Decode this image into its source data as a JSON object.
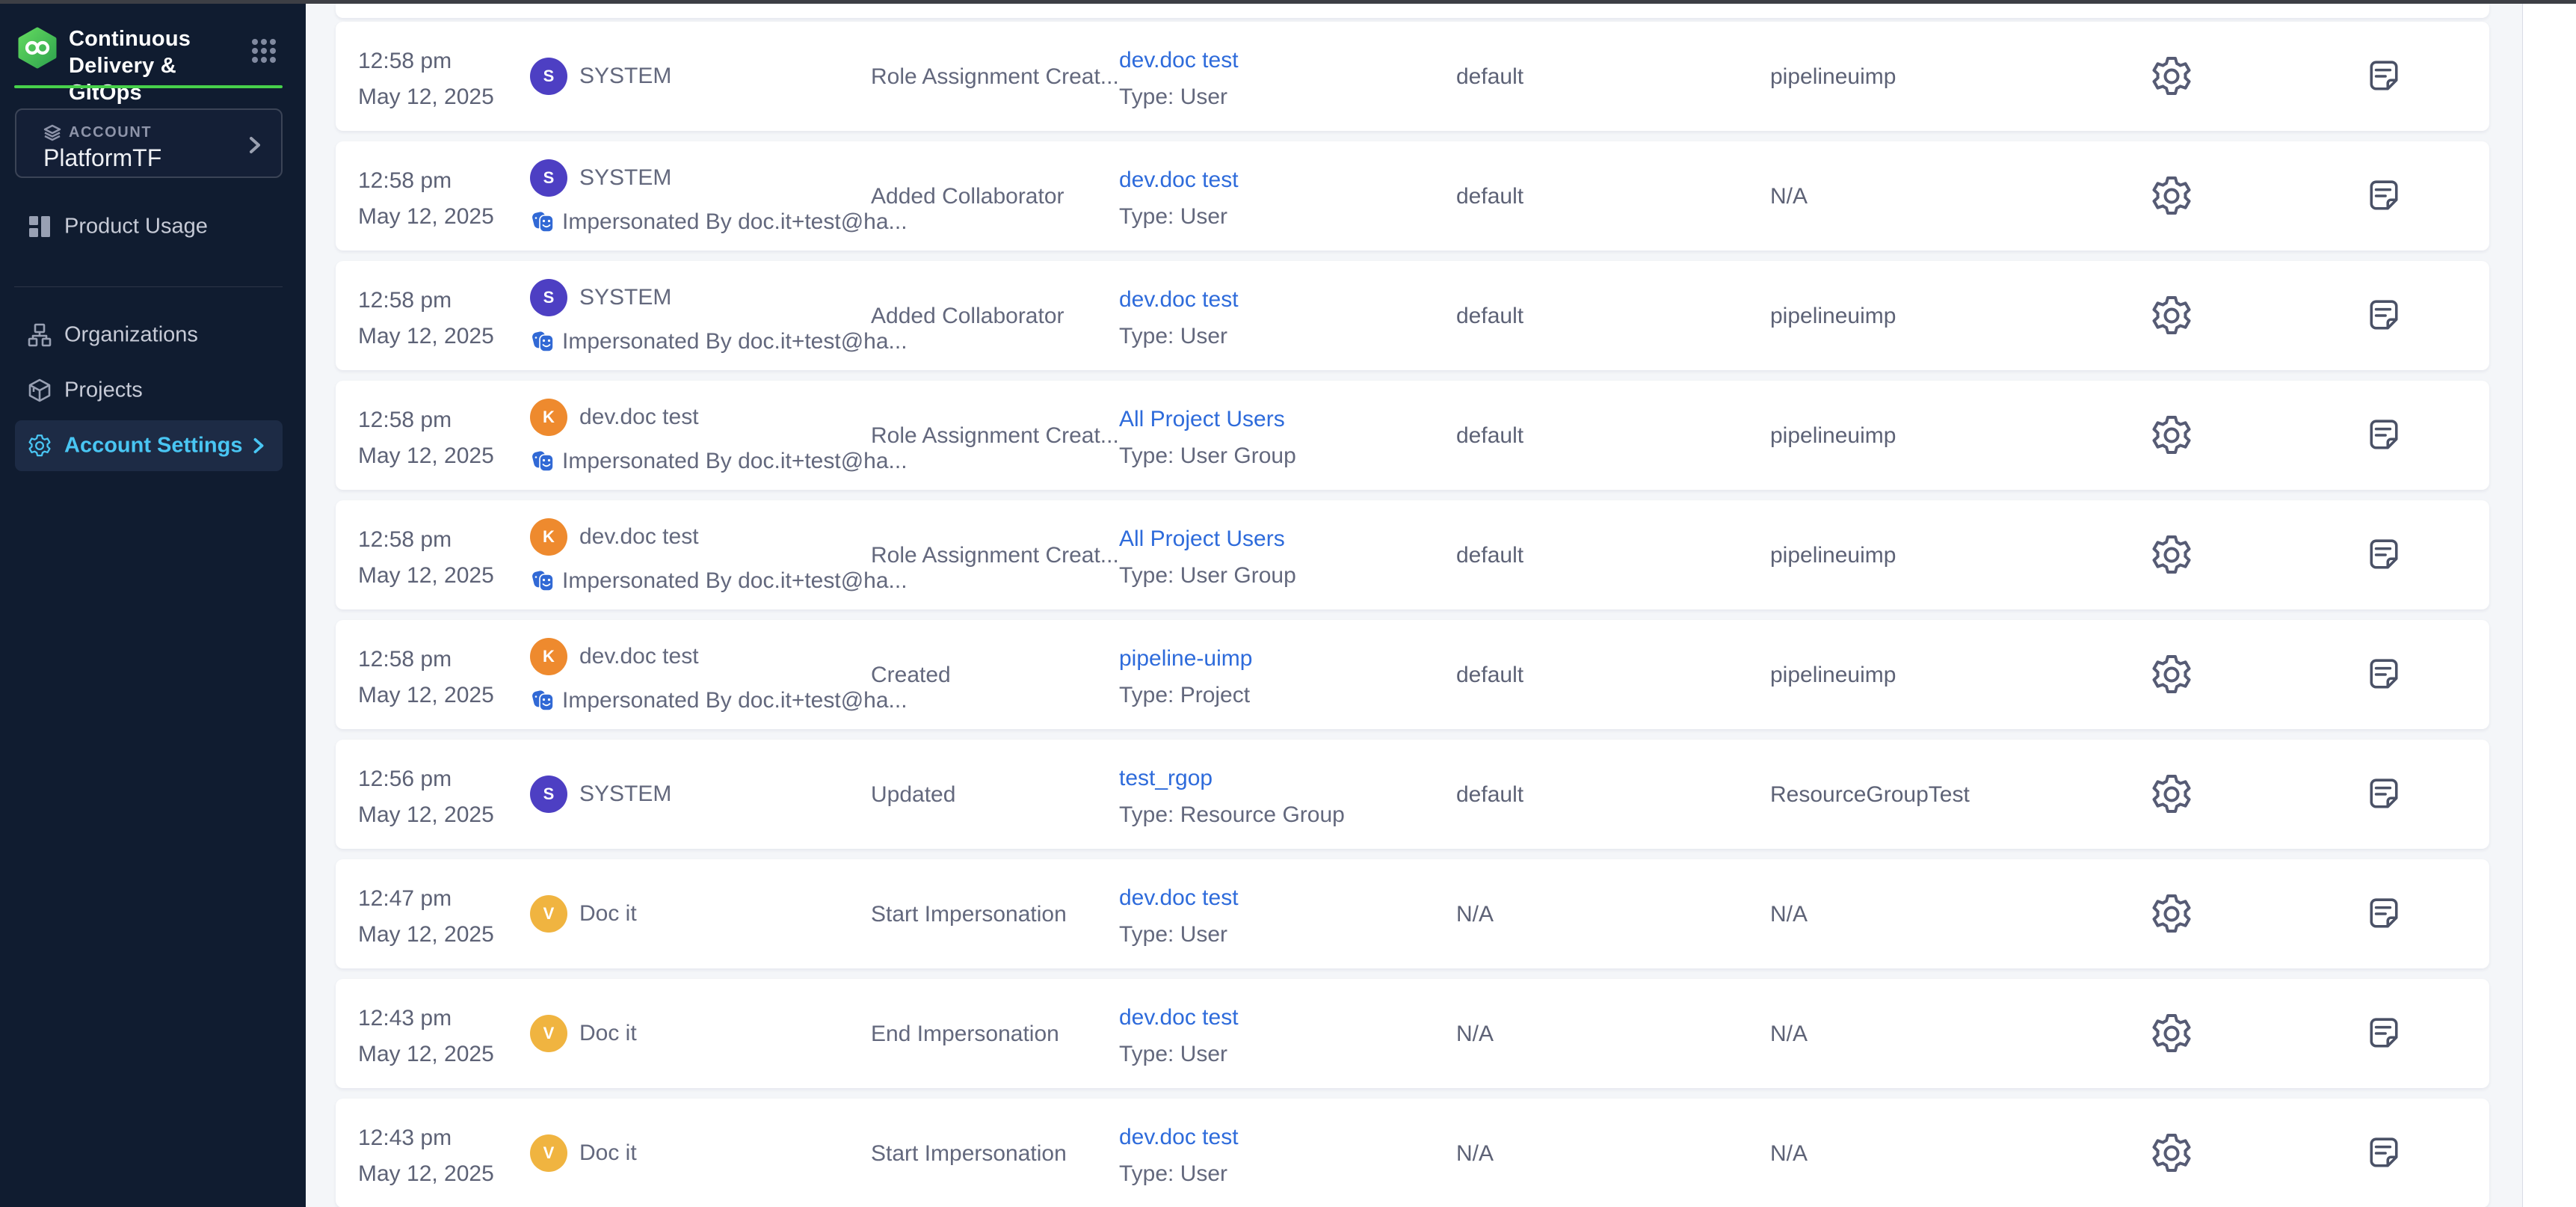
{
  "sidebar": {
    "logo": {
      "title_line1": "Continuous",
      "title_line2": "Delivery & GitOps"
    },
    "account": {
      "label": "ACCOUNT",
      "name": "PlatformTF"
    },
    "nav": {
      "product_usage": "Product Usage",
      "organizations": "Organizations",
      "projects": "Projects",
      "account_settings": "Account Settings"
    }
  },
  "colors": {
    "accent_green": "#47d14b",
    "selected_blue": "#49c6f3",
    "link_blue": "#2e6bdb",
    "impersonation_blue": "#3169d5",
    "avatar_purple": "#4d3fc3",
    "avatar_orange": "#ee8a2e",
    "avatar_amber": "#f0b440",
    "sidebar_bg": "#101c30",
    "card_bg": "#ffffff"
  },
  "table": {
    "rows": [
      {
        "time": "12:58 pm",
        "date": "May 12, 2025",
        "avatar_initial": "S",
        "avatar_color": "#4d3fc3",
        "user_name": "SYSTEM",
        "impersonated_label": null,
        "action": "Role Assignment Creat...",
        "resource_link": "dev.doc test",
        "resource_type_label": "Type: User",
        "organization": "default",
        "project": "pipelineuimp"
      },
      {
        "time": "12:58 pm",
        "date": "May 12, 2025",
        "avatar_initial": "S",
        "avatar_color": "#4d3fc3",
        "user_name": "SYSTEM",
        "impersonated_label": "Impersonated By doc.it+test@ha...",
        "action": "Added Collaborator",
        "resource_link": "dev.doc test",
        "resource_type_label": "Type: User",
        "organization": "default",
        "project": "N/A"
      },
      {
        "time": "12:58 pm",
        "date": "May 12, 2025",
        "avatar_initial": "S",
        "avatar_color": "#4d3fc3",
        "user_name": "SYSTEM",
        "impersonated_label": "Impersonated By doc.it+test@ha...",
        "action": "Added Collaborator",
        "resource_link": "dev.doc test",
        "resource_type_label": "Type: User",
        "organization": "default",
        "project": "pipelineuimp"
      },
      {
        "time": "12:58 pm",
        "date": "May 12, 2025",
        "avatar_initial": "K",
        "avatar_color": "#ee8a2e",
        "user_name": "dev.doc test",
        "impersonated_label": "Impersonated By doc.it+test@ha...",
        "action": "Role Assignment Creat...",
        "resource_link": "All Project Users",
        "resource_type_label": "Type: User Group",
        "organization": "default",
        "project": "pipelineuimp"
      },
      {
        "time": "12:58 pm",
        "date": "May 12, 2025",
        "avatar_initial": "K",
        "avatar_color": "#ee8a2e",
        "user_name": "dev.doc test",
        "impersonated_label": "Impersonated By doc.it+test@ha...",
        "action": "Role Assignment Creat...",
        "resource_link": "All Project Users",
        "resource_type_label": "Type: User Group",
        "organization": "default",
        "project": "pipelineuimp"
      },
      {
        "time": "12:58 pm",
        "date": "May 12, 2025",
        "avatar_initial": "K",
        "avatar_color": "#ee8a2e",
        "user_name": "dev.doc test",
        "impersonated_label": "Impersonated By doc.it+test@ha...",
        "action": "Created",
        "resource_link": "pipeline-uimp",
        "resource_type_label": "Type: Project",
        "organization": "default",
        "project": "pipelineuimp"
      },
      {
        "time": "12:56 pm",
        "date": "May 12, 2025",
        "avatar_initial": "S",
        "avatar_color": "#4d3fc3",
        "user_name": "SYSTEM",
        "impersonated_label": null,
        "action": "Updated",
        "resource_link": "test_rgop",
        "resource_type_label": "Type: Resource Group",
        "organization": "default",
        "project": "ResourceGroupTest"
      },
      {
        "time": "12:47 pm",
        "date": "May 12, 2025",
        "avatar_initial": "V",
        "avatar_color": "#f0b440",
        "user_name": "Doc it",
        "impersonated_label": null,
        "action": "Start Impersonation",
        "resource_link": "dev.doc test",
        "resource_type_label": "Type: User",
        "organization": "N/A",
        "project": "N/A"
      },
      {
        "time": "12:43 pm",
        "date": "May 12, 2025",
        "avatar_initial": "V",
        "avatar_color": "#f0b440",
        "user_name": "Doc it",
        "impersonated_label": null,
        "action": "End Impersonation",
        "resource_link": "dev.doc test",
        "resource_type_label": "Type: User",
        "organization": "N/A",
        "project": "N/A"
      },
      {
        "time": "12:43 pm",
        "date": "May 12, 2025",
        "avatar_initial": "V",
        "avatar_color": "#f0b440",
        "user_name": "Doc it",
        "impersonated_label": null,
        "action": "Start Impersonation",
        "resource_link": "dev.doc test",
        "resource_type_label": "Type: User",
        "organization": "N/A",
        "project": "N/A"
      }
    ]
  }
}
